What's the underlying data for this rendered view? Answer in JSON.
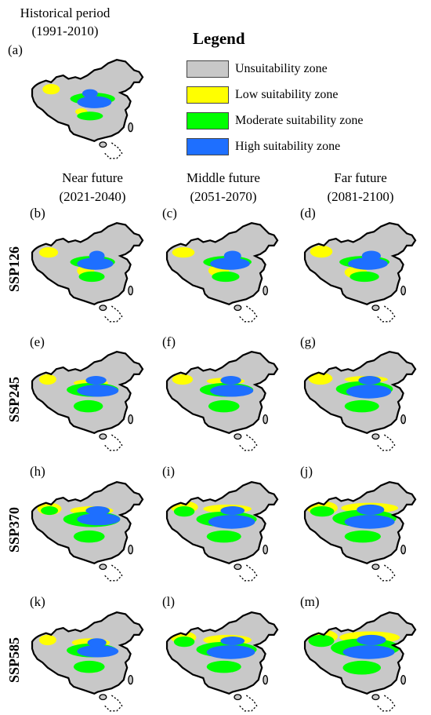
{
  "historical": {
    "title_line1": "Historical period",
    "title_line2": "(1991-2010)",
    "panel": "(a)"
  },
  "legend": {
    "title": "Legend",
    "items": [
      {
        "label": "Unsuitability zone",
        "color": "#c8c8c8"
      },
      {
        "label": "Low suitability zone",
        "color": "#ffff00"
      },
      {
        "label": "Moderate suitability zone",
        "color": "#00ff00"
      },
      {
        "label": "High suitability zone",
        "color": "#1e6fff"
      }
    ]
  },
  "columns": [
    {
      "line1": "Near future",
      "line2": "(2021-2040)"
    },
    {
      "line1": "Middle future",
      "line2": "(2051-2070)"
    },
    {
      "line1": "Far future",
      "line2": "(2081-2100)"
    }
  ],
  "rows": [
    {
      "scenario": "SSP126",
      "panels": [
        "(b)",
        "(c)",
        "(d)"
      ]
    },
    {
      "scenario": "SSP245",
      "panels": [
        "(e)",
        "(f)",
        "(g)"
      ]
    },
    {
      "scenario": "SSP370",
      "panels": [
        "(h)",
        "(i)",
        "(j)"
      ]
    },
    {
      "scenario": "SSP585",
      "panels": [
        "(k)",
        "(l)",
        "(m)"
      ]
    }
  ]
}
